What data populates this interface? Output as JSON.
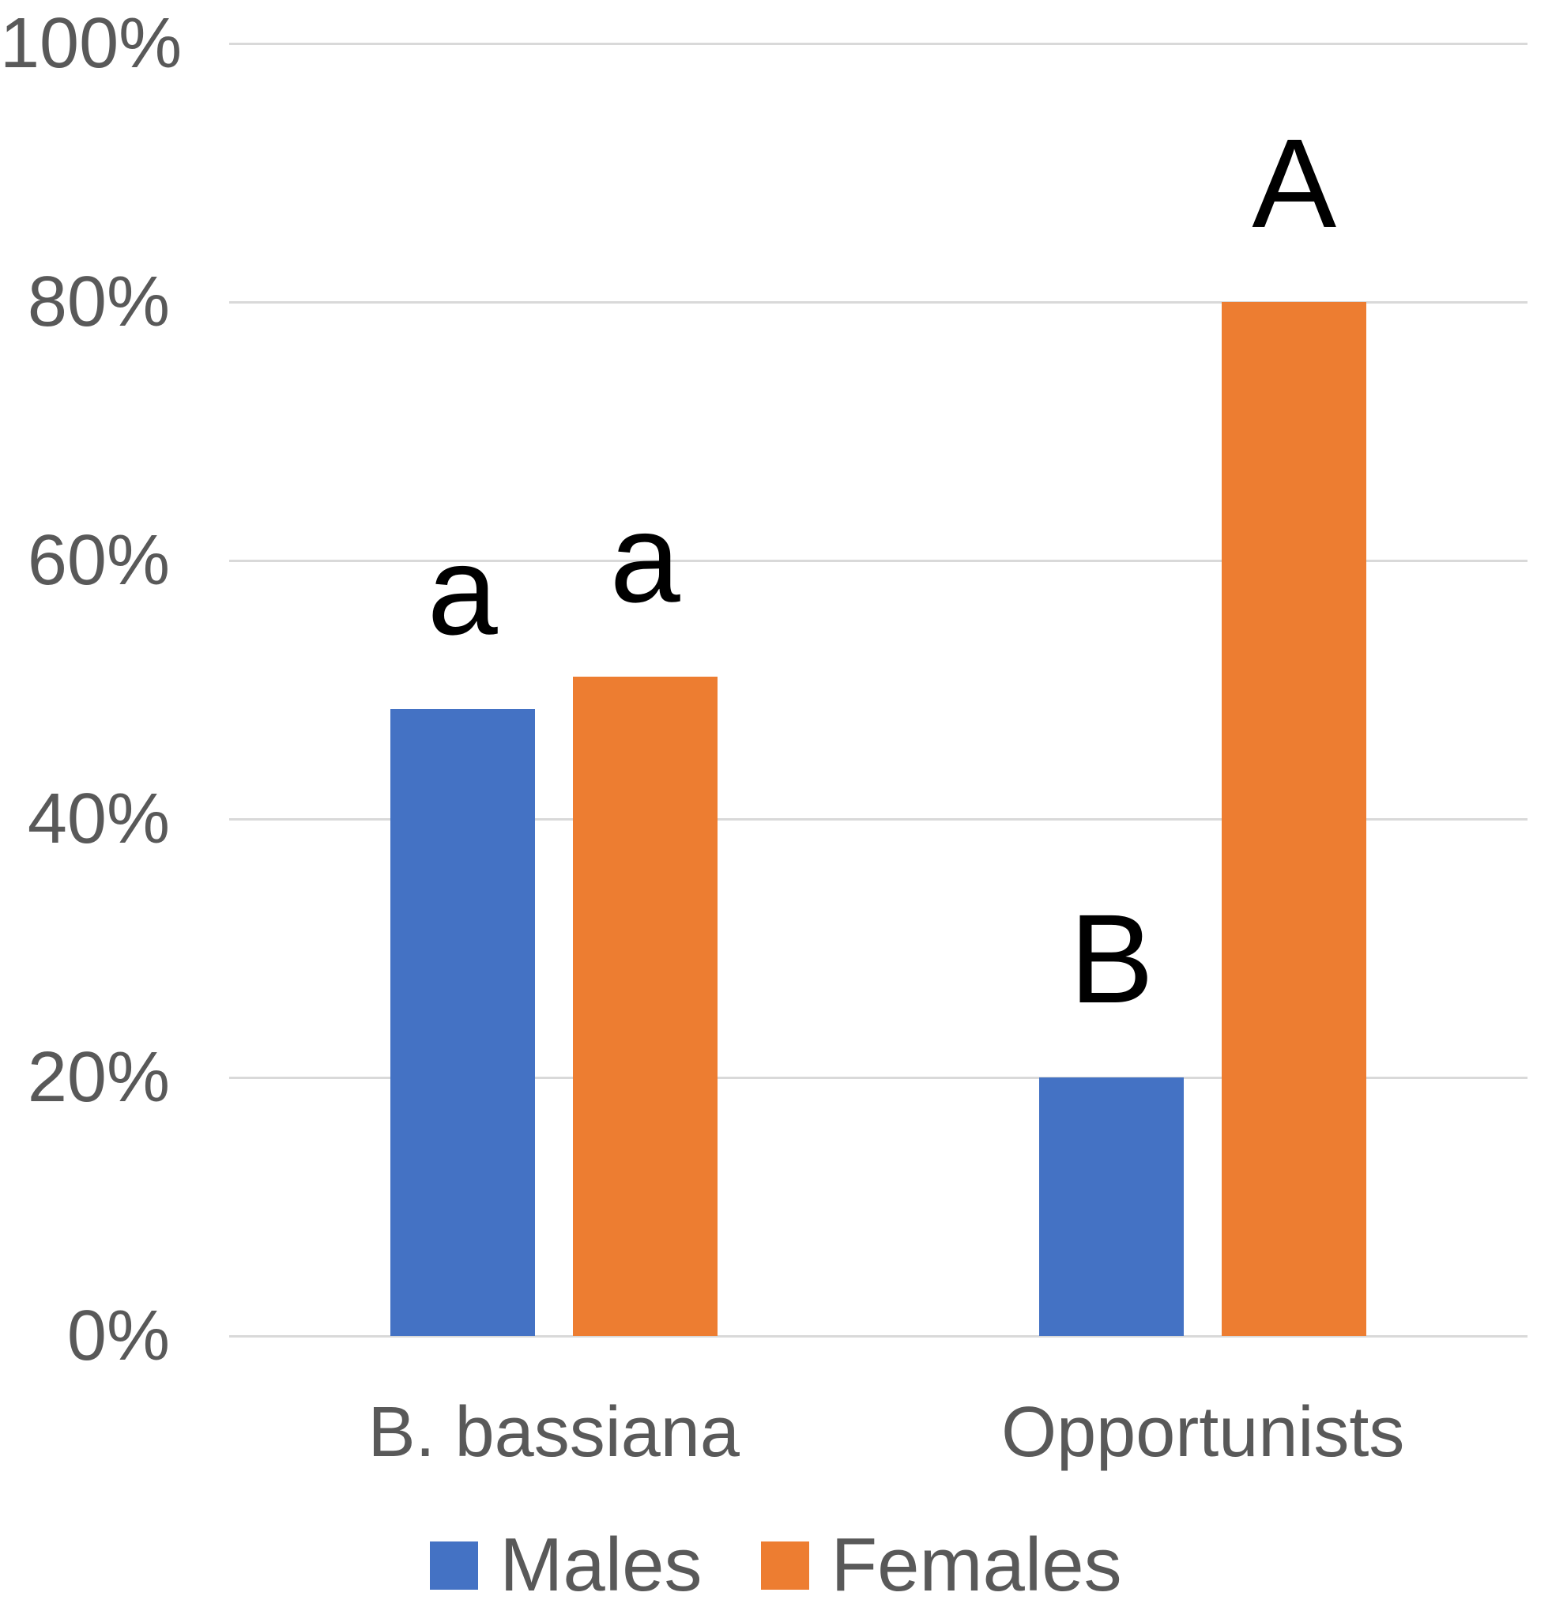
{
  "chart_data": {
    "type": "bar",
    "categories": [
      "B. bassiana",
      "Opportunists"
    ],
    "series": [
      {
        "name": "Males",
        "color": "#4472C4",
        "values": [
          48.5,
          20
        ],
        "bar_labels": [
          "a",
          "B"
        ]
      },
      {
        "name": "Females",
        "color": "#ED7D31",
        "values": [
          51,
          80
        ],
        "bar_labels": [
          "a",
          "A"
        ]
      }
    ],
    "ytick_values": [
      0,
      20,
      40,
      60,
      80,
      100
    ],
    "ytick_labels": [
      "0%",
      "20%",
      "40%",
      "60%",
      "80%",
      "100%"
    ],
    "ylim": [
      0,
      100
    ],
    "grid": true,
    "legend_position": "bottom",
    "colors": {
      "gridline": "#D9D9D9",
      "axis_text": "#595959",
      "annotation_text": "#000000",
      "background": "#FFFFFF"
    }
  },
  "legend": {
    "items": [
      {
        "label": "Males",
        "color": "#4472C4"
      },
      {
        "label": "Females",
        "color": "#ED7D31"
      }
    ]
  }
}
